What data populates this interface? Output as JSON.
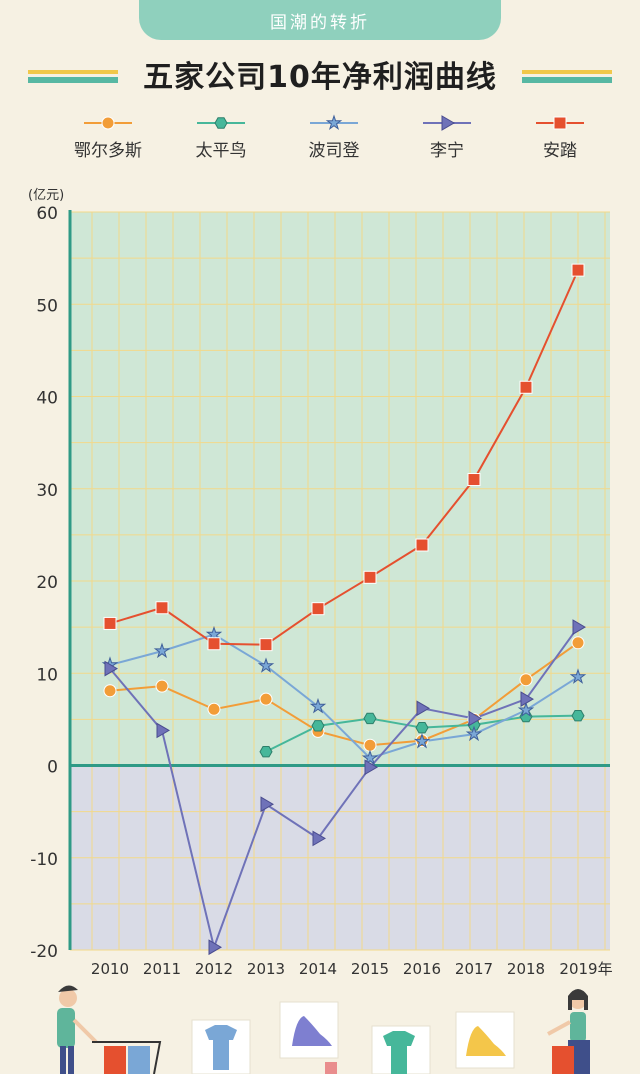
{
  "header": {
    "banner": "国潮的转折",
    "title": "五家公司10年净利润曲线"
  },
  "colors": {
    "positive_bg": "#cfe7d6",
    "negative_bg": "#d9dbe6",
    "grid": "#f2d98a",
    "axis": "#2e9a86"
  },
  "chart_data": {
    "type": "line",
    "ylabel": "(亿元)",
    "ylim": [
      -20,
      60
    ],
    "yticks": [
      "60",
      "50",
      "40",
      "30",
      "20",
      "10",
      "0",
      "-10",
      "-20"
    ],
    "ytick_values": [
      60,
      50,
      40,
      30,
      20,
      10,
      0,
      -10,
      -20
    ],
    "categories": [
      "2010",
      "2011",
      "2012",
      "2013",
      "2014",
      "2015",
      "2016",
      "2017",
      "2018",
      "2019年"
    ],
    "legend_position": "top",
    "grid": true,
    "series": [
      {
        "name": "鄂尔多斯",
        "color": "#f29d38",
        "marker": "circle",
        "values": [
          8.1,
          8.6,
          6.1,
          7.2,
          3.7,
          2.2,
          2.7,
          5.0,
          9.3,
          13.3
        ]
      },
      {
        "name": "太平鸟",
        "color": "#46b79a",
        "marker": "hexagon",
        "values": [
          null,
          null,
          null,
          1.5,
          4.3,
          5.1,
          4.1,
          4.4,
          5.3,
          5.4
        ]
      },
      {
        "name": "波司登",
        "color": "#7aa7d6",
        "marker": "star",
        "values": [
          10.9,
          12.4,
          14.2,
          10.8,
          6.4,
          0.8,
          2.6,
          3.4,
          6.0,
          9.6
        ]
      },
      {
        "name": "李宁",
        "color": "#6f72b8",
        "marker": "triangle",
        "values": [
          10.5,
          3.8,
          -19.7,
          -4.2,
          -7.9,
          -0.2,
          6.2,
          5.1,
          7.2,
          15.0
        ]
      },
      {
        "name": "安踏",
        "color": "#e5502f",
        "marker": "square",
        "values": [
          15.4,
          17.1,
          13.2,
          13.1,
          17.0,
          20.4,
          23.9,
          31.0,
          41.0,
          53.7
        ]
      }
    ]
  }
}
